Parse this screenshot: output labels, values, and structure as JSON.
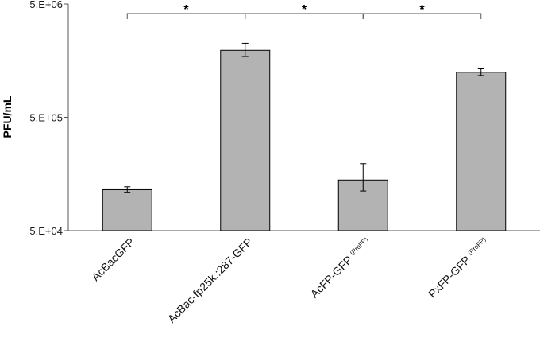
{
  "chart_data": {
    "type": "bar",
    "ylabel": "PFU/mL",
    "yscale": "log",
    "ylim": [
      50000,
      5000000
    ],
    "yticks": [
      {
        "value": 50000,
        "label": "5.E+04"
      },
      {
        "value": 500000,
        "label": "5.E+05"
      },
      {
        "value": 5000000,
        "label": "5.E+06"
      }
    ],
    "categories": [
      {
        "label": "AcBacGFP",
        "sup": ""
      },
      {
        "label": "AcBac-fp25k::287-GFP",
        "sup": ""
      },
      {
        "label": "AcFP-GFP",
        "sup": "(ProFP)"
      },
      {
        "label": "PxFP-GFP",
        "sup": "(ProFP)"
      }
    ],
    "values": [
      115000,
      1950000,
      140000,
      1250000
    ],
    "error_low": [
      108000,
      1720000,
      112000,
      1170000
    ],
    "error_high": [
      122000,
      2250000,
      195000,
      1340000
    ],
    "bar_color": "#b3b3b3",
    "significance": [
      {
        "from": 0,
        "to": 1,
        "label": "*"
      },
      {
        "from": 1,
        "to": 2,
        "label": "*"
      },
      {
        "from": 2,
        "to": 3,
        "label": "*"
      }
    ],
    "grid": false,
    "legend": "none"
  }
}
